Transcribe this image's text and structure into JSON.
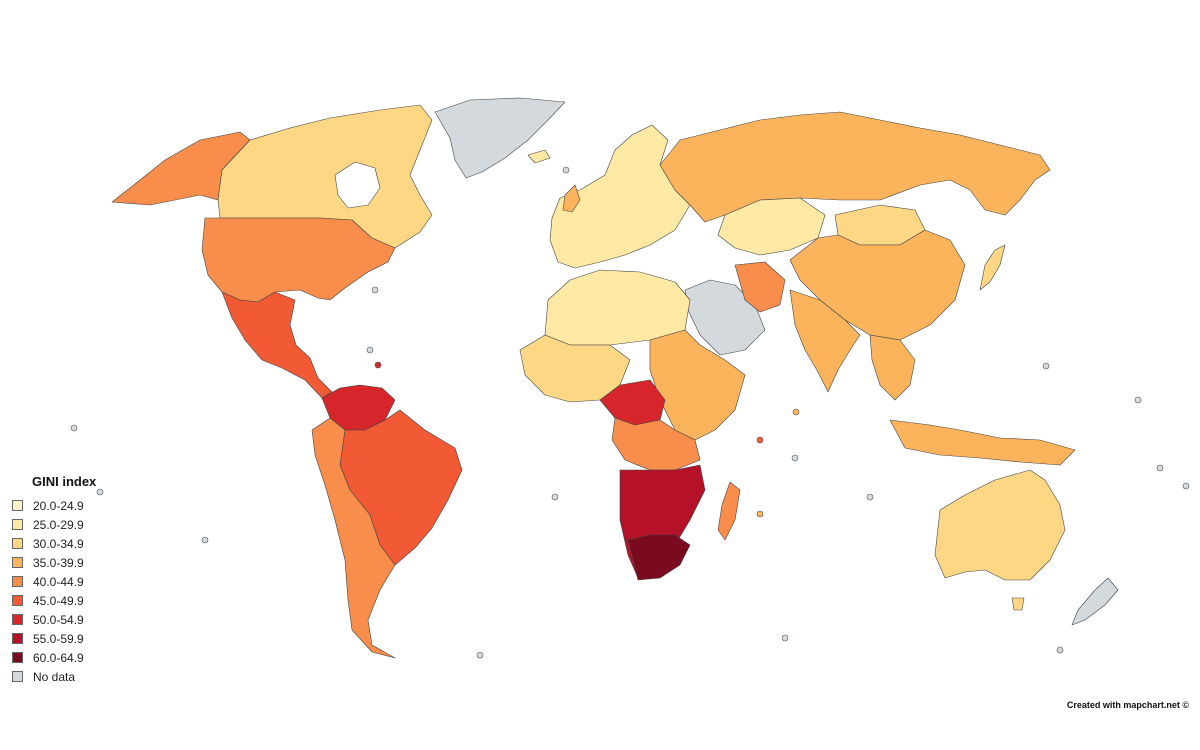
{
  "legend": {
    "title": "GINI index",
    "items": [
      {
        "label": "20.0-24.9",
        "color": "#fff5cc"
      },
      {
        "label": "25.0-29.9",
        "color": "#fee9a4"
      },
      {
        "label": "30.0-34.9",
        "color": "#fdd783"
      },
      {
        "label": "35.0-39.9",
        "color": "#fcb45c"
      },
      {
        "label": "40.0-44.9",
        "color": "#f98d4b"
      },
      {
        "label": "45.0-49.9",
        "color": "#f15a35"
      },
      {
        "label": "50.0-54.9",
        "color": "#d7262b"
      },
      {
        "label": "55.0-59.9",
        "color": "#b5122a"
      },
      {
        "label": "60.0-64.9",
        "color": "#7a0a1e"
      },
      {
        "label": "No data",
        "color": "#d3d9dd"
      }
    ]
  },
  "credit": "Created with mapchart.net ©",
  "colors": {
    "border": "#333333",
    "background": "#ffffff"
  }
}
